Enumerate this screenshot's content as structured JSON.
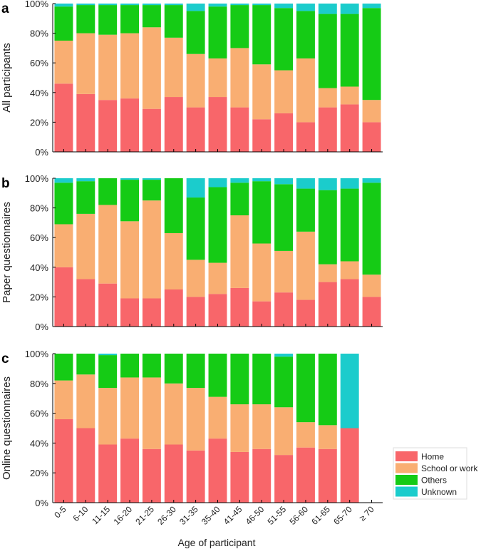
{
  "figure": {
    "x_axis_label": "Age of participant"
  },
  "legend": {
    "placement": "bottom-right"
  },
  "chart_data": {
    "type": "bar",
    "stacked": true,
    "xlabel": "Age of participant",
    "categories": [
      "0-5",
      "6-10",
      "11-15",
      "16-20",
      "21-25",
      "26-30",
      "31-35",
      "35-40",
      "41-45",
      "46-50",
      "51-55",
      "56-60",
      "61-65",
      "65-70",
      "≥ 70"
    ],
    "series_names": [
      "Home",
      "School or work",
      "Others",
      "Unknown"
    ],
    "colors": [
      "#f8666a",
      "#f9ae72",
      "#15cb15",
      "#1bcccc"
    ],
    "ylim": [
      0,
      100
    ],
    "yticks": [
      0,
      20,
      40,
      60,
      80,
      100
    ],
    "ytick_labels": [
      "0%",
      "20%",
      "40%",
      "60%",
      "80%",
      "100%"
    ],
    "panels": [
      {
        "letter": "a",
        "ylabel": "All participants",
        "series": [
          {
            "name": "Home",
            "values": [
              46,
              39,
              35,
              36,
              29,
              37,
              30,
              37,
              30,
              22,
              26,
              20,
              30,
              32,
              20
            ]
          },
          {
            "name": "School or work",
            "values": [
              29,
              41,
              44,
              44,
              55,
              40,
              36,
              26,
              40,
              37,
              29,
              43,
              13,
              12,
              15
            ]
          },
          {
            "name": "Others",
            "values": [
              23,
              19,
              20,
              19,
              15,
              22,
              29,
              35,
              29,
              40,
              42,
              32,
              50,
              49,
              62
            ]
          },
          {
            "name": "Unknown",
            "values": [
              2,
              1,
              1,
              1,
              1,
              1,
              5,
              2,
              1,
              1,
              3,
              5,
              7,
              7,
              3
            ]
          }
        ]
      },
      {
        "letter": "b",
        "ylabel": "Paper questionnaires",
        "series": [
          {
            "name": "Home",
            "values": [
              40,
              32,
              29,
              19,
              19,
              25,
              20,
              22,
              26,
              17,
              23,
              18,
              30,
              32,
              20
            ]
          },
          {
            "name": "School or work",
            "values": [
              29,
              44,
              53,
              52,
              66,
              38,
              25,
              21,
              49,
              39,
              28,
              46,
              12,
              12,
              15
            ]
          },
          {
            "name": "Others",
            "values": [
              28,
              22,
              18,
              28,
              14,
              37,
              42,
              51,
              22,
              42,
              45,
              29,
              50,
              49,
              62
            ]
          },
          {
            "name": "Unknown",
            "values": [
              3,
              2,
              0,
              1,
              1,
              0,
              13,
              6,
              3,
              2,
              4,
              7,
              8,
              7,
              3
            ]
          }
        ]
      },
      {
        "letter": "c",
        "ylabel": "Online questionnaires",
        "series": [
          {
            "name": "Home",
            "values": [
              56,
              50,
              39,
              43,
              36,
              39,
              35,
              43,
              34,
              36,
              32,
              37,
              36,
              50,
              0
            ]
          },
          {
            "name": "School or work",
            "values": [
              26,
              36,
              38,
              41,
              48,
              41,
              42,
              28,
              32,
              30,
              32,
              17,
              16,
              0,
              0
            ]
          },
          {
            "name": "Others",
            "values": [
              18,
              14,
              22,
              16,
              16,
              20,
              23,
              29,
              34,
              34,
              34,
              46,
              48,
              0,
              0
            ]
          },
          {
            "name": "Unknown",
            "values": [
              0,
              0,
              1,
              0,
              0,
              0,
              0,
              0,
              0,
              0,
              2,
              0,
              0,
              50,
              0
            ]
          }
        ]
      }
    ]
  }
}
